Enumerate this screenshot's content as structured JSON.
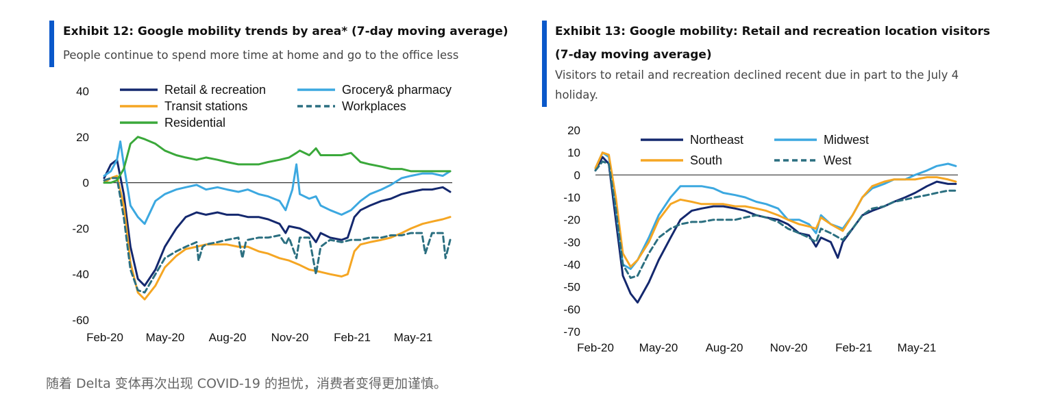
{
  "caption": "随着 Delta 变体再次出现 COVID-19 的担忧，消费者变得更加谨慎。",
  "colors": {
    "accent": "#0a58ca",
    "Retail & recreation": "#14286e",
    "Grocery& pharmacy": "#3ca8e0",
    "Transit stations": "#f5a623",
    "Workplaces": "#2b6f80",
    "Residential": "#3aa83a",
    "Northeast": "#14286e",
    "Midwest": "#3ca8e0",
    "South": "#f5a623",
    "West": "#2b6f80"
  },
  "exhibit12": {
    "title": "Exhibit 12: Google mobility trends by area* (7-day moving average)",
    "subtitle": "People continue to spend more time at home and go to the office less"
  },
  "exhibit13": {
    "title_line1": "Exhibit 13: Google mobility: Retail and recreation location visitors",
    "title_line2": "(7-day moving average)",
    "subtitle_line1": "Visitors to retail and recreation declined recent due in part to the July 4",
    "subtitle_line2": "holiday."
  },
  "chart_data": [
    {
      "type": "line",
      "ylim": [
        -60,
        40
      ],
      "yticks": [
        "40",
        "20",
        "0",
        "-20",
        "-40",
        "-60"
      ],
      "xticks": [
        "Feb-20",
        "May-20",
        "Aug-20",
        "Nov-20",
        "Feb-21",
        "May-21"
      ],
      "legend": [
        "Retail & recreation",
        "Grocery& pharmacy",
        "Transit stations",
        "Workplaces",
        "Residential"
      ],
      "series": [
        {
          "name": "Retail & recreation",
          "style": "solid",
          "x": [
            "2020-02-15",
            "2020-02-25",
            "2020-03-05",
            "2020-03-15",
            "2020-03-25",
            "2020-04-05",
            "2020-04-15",
            "2020-05-01",
            "2020-05-15",
            "2020-06-01",
            "2020-06-15",
            "2020-07-01",
            "2020-07-15",
            "2020-08-01",
            "2020-08-15",
            "2020-09-01",
            "2020-09-15",
            "2020-10-01",
            "2020-10-15",
            "2020-11-01",
            "2020-11-10",
            "2020-11-15",
            "2020-12-01",
            "2020-12-15",
            "2020-12-25",
            "2021-01-01",
            "2021-01-15",
            "2021-02-01",
            "2021-02-10",
            "2021-02-20",
            "2021-03-01",
            "2021-03-15",
            "2021-04-01",
            "2021-04-15",
            "2021-05-01",
            "2021-05-15",
            "2021-06-01",
            "2021-06-15",
            "2021-07-01",
            "2021-07-12"
          ],
          "y": [
            2,
            8,
            10,
            -5,
            -28,
            -42,
            -45,
            -38,
            -28,
            -20,
            -15,
            -13,
            -14,
            -13,
            -14,
            -14,
            -15,
            -15,
            -16,
            -18,
            -22,
            -19,
            -20,
            -22,
            -26,
            -22,
            -24,
            -25,
            -24,
            -15,
            -12,
            -10,
            -8,
            -7,
            -5,
            -4,
            -3,
            -3,
            -2,
            -4
          ]
        },
        {
          "name": "Grocery& pharmacy",
          "style": "solid",
          "x": [
            "2020-02-15",
            "2020-02-25",
            "2020-03-05",
            "2020-03-10",
            "2020-03-15",
            "2020-03-25",
            "2020-04-05",
            "2020-04-15",
            "2020-05-01",
            "2020-05-15",
            "2020-06-01",
            "2020-06-15",
            "2020-07-01",
            "2020-07-15",
            "2020-08-01",
            "2020-08-15",
            "2020-09-01",
            "2020-09-15",
            "2020-10-01",
            "2020-10-15",
            "2020-11-01",
            "2020-11-10",
            "2020-11-20",
            "2020-11-26",
            "2020-12-01",
            "2020-12-15",
            "2020-12-25",
            "2021-01-01",
            "2021-01-15",
            "2021-02-01",
            "2021-02-15",
            "2021-03-01",
            "2021-03-15",
            "2021-04-01",
            "2021-04-15",
            "2021-05-01",
            "2021-05-15",
            "2021-06-01",
            "2021-06-15",
            "2021-07-01",
            "2021-07-12"
          ],
          "y": [
            3,
            5,
            10,
            18,
            8,
            -10,
            -15,
            -18,
            -8,
            -5,
            -3,
            -2,
            -1,
            -3,
            -2,
            -3,
            -4,
            -3,
            -5,
            -6,
            -8,
            -12,
            -3,
            8,
            -5,
            -7,
            -6,
            -10,
            -12,
            -14,
            -12,
            -8,
            -5,
            -3,
            -1,
            2,
            3,
            4,
            4,
            3,
            5
          ]
        },
        {
          "name": "Transit stations",
          "style": "solid",
          "x": [
            "2020-02-15",
            "2020-02-25",
            "2020-03-05",
            "2020-03-15",
            "2020-03-25",
            "2020-04-05",
            "2020-04-15",
            "2020-05-01",
            "2020-05-15",
            "2020-06-01",
            "2020-06-15",
            "2020-07-01",
            "2020-07-15",
            "2020-08-01",
            "2020-08-15",
            "2020-09-01",
            "2020-09-15",
            "2020-10-01",
            "2020-10-15",
            "2020-11-01",
            "2020-11-15",
            "2020-12-01",
            "2020-12-15",
            "2021-01-01",
            "2021-01-15",
            "2021-02-01",
            "2021-02-10",
            "2021-02-20",
            "2021-03-01",
            "2021-03-15",
            "2021-04-01",
            "2021-04-15",
            "2021-05-01",
            "2021-05-15",
            "2021-06-01",
            "2021-06-15",
            "2021-07-01",
            "2021-07-12"
          ],
          "y": [
            0,
            2,
            3,
            -10,
            -35,
            -48,
            -51,
            -45,
            -37,
            -32,
            -29,
            -28,
            -27,
            -27,
            -27,
            -28,
            -28,
            -30,
            -31,
            -33,
            -34,
            -36,
            -38,
            -39,
            -40,
            -41,
            -40,
            -30,
            -27,
            -26,
            -25,
            -24,
            -22,
            -20,
            -18,
            -17,
            -16,
            -15
          ]
        },
        {
          "name": "Workplaces",
          "style": "dashed",
          "x": [
            "2020-02-15",
            "2020-02-25",
            "2020-03-05",
            "2020-03-15",
            "2020-03-25",
            "2020-04-05",
            "2020-04-15",
            "2020-05-01",
            "2020-05-15",
            "2020-06-01",
            "2020-06-15",
            "2020-07-01",
            "2020-07-04",
            "2020-07-10",
            "2020-07-15",
            "2020-08-01",
            "2020-08-15",
            "2020-09-01",
            "2020-09-07",
            "2020-09-12",
            "2020-09-15",
            "2020-10-01",
            "2020-10-15",
            "2020-11-01",
            "2020-11-10",
            "2020-11-15",
            "2020-11-26",
            "2020-12-01",
            "2020-12-15",
            "2020-12-25",
            "2021-01-01",
            "2021-01-10",
            "2021-01-15",
            "2021-02-01",
            "2021-02-15",
            "2021-03-01",
            "2021-03-15",
            "2021-04-01",
            "2021-04-15",
            "2021-05-01",
            "2021-05-15",
            "2021-05-31",
            "2021-06-05",
            "2021-06-15",
            "2021-07-01",
            "2021-07-05",
            "2021-07-12"
          ],
          "y": [
            1,
            2,
            2,
            -15,
            -38,
            -47,
            -48,
            -40,
            -33,
            -30,
            -28,
            -26,
            -34,
            -28,
            -27,
            -26,
            -25,
            -24,
            -33,
            -26,
            -25,
            -24,
            -24,
            -23,
            -27,
            -24,
            -33,
            -24,
            -24,
            -40,
            -28,
            -26,
            -25,
            -26,
            -25,
            -25,
            -24,
            -24,
            -23,
            -23,
            -22,
            -22,
            -31,
            -22,
            -22,
            -33,
            -25
          ]
        },
        {
          "name": "Residential",
          "style": "solid",
          "x": [
            "2020-02-15",
            "2020-02-25",
            "2020-03-05",
            "2020-03-15",
            "2020-03-25",
            "2020-04-05",
            "2020-04-15",
            "2020-05-01",
            "2020-05-15",
            "2020-06-01",
            "2020-06-15",
            "2020-07-01",
            "2020-07-15",
            "2020-08-01",
            "2020-08-15",
            "2020-09-01",
            "2020-09-15",
            "2020-10-01",
            "2020-10-15",
            "2020-11-01",
            "2020-11-15",
            "2020-11-26",
            "2020-12-01",
            "2020-12-15",
            "2020-12-25",
            "2021-01-01",
            "2021-01-15",
            "2021-02-01",
            "2021-02-15",
            "2021-03-01",
            "2021-03-15",
            "2021-04-01",
            "2021-04-15",
            "2021-05-01",
            "2021-05-15",
            "2021-06-01",
            "2021-06-15",
            "2021-07-01",
            "2021-07-12"
          ],
          "y": [
            0,
            0,
            1,
            6,
            17,
            20,
            19,
            17,
            14,
            12,
            11,
            10,
            11,
            10,
            9,
            8,
            8,
            8,
            9,
            10,
            11,
            13,
            14,
            12,
            15,
            12,
            12,
            12,
            13,
            9,
            8,
            7,
            6,
            6,
            5,
            5,
            5,
            5,
            5
          ]
        }
      ]
    },
    {
      "type": "line",
      "ylim": [
        -70,
        20
      ],
      "yticks": [
        "20",
        "10",
        "0",
        "-10",
        "-20",
        "-30",
        "-40",
        "-50",
        "-60",
        "-70"
      ],
      "xticks": [
        "Feb-20",
        "May-20",
        "Aug-20",
        "Nov-20",
        "Feb-21",
        "May-21"
      ],
      "legend": [
        "Northeast",
        "Midwest",
        "South",
        "West"
      ],
      "series": [
        {
          "name": "Northeast",
          "style": "solid",
          "x": [
            "2020-02-15",
            "2020-02-25",
            "2020-03-05",
            "2020-03-15",
            "2020-03-25",
            "2020-04-05",
            "2020-04-15",
            "2020-05-01",
            "2020-05-15",
            "2020-06-01",
            "2020-06-15",
            "2020-07-01",
            "2020-07-15",
            "2020-08-01",
            "2020-08-15",
            "2020-09-01",
            "2020-09-15",
            "2020-10-01",
            "2020-10-15",
            "2020-11-01",
            "2020-11-15",
            "2020-12-01",
            "2020-12-15",
            "2020-12-25",
            "2021-01-01",
            "2021-01-15",
            "2021-01-25",
            "2021-02-01",
            "2021-02-15",
            "2021-03-01",
            "2021-03-15",
            "2021-04-01",
            "2021-04-15",
            "2021-05-01",
            "2021-05-15",
            "2021-06-01",
            "2021-06-15",
            "2021-07-01",
            "2021-07-12"
          ],
          "y": [
            2,
            8,
            5,
            -20,
            -45,
            -53,
            -57,
            -48,
            -38,
            -28,
            -20,
            -16,
            -15,
            -14,
            -14,
            -15,
            -16,
            -18,
            -19,
            -20,
            -22,
            -26,
            -27,
            -32,
            -28,
            -30,
            -37,
            -30,
            -24,
            -18,
            -16,
            -14,
            -12,
            -10,
            -8,
            -5,
            -3,
            -4,
            -4
          ]
        },
        {
          "name": "Midwest",
          "style": "solid",
          "x": [
            "2020-02-15",
            "2020-02-25",
            "2020-03-05",
            "2020-03-15",
            "2020-03-25",
            "2020-04-05",
            "2020-04-15",
            "2020-05-01",
            "2020-05-15",
            "2020-06-01",
            "2020-06-15",
            "2020-07-01",
            "2020-07-15",
            "2020-08-01",
            "2020-08-15",
            "2020-09-01",
            "2020-09-15",
            "2020-10-01",
            "2020-10-15",
            "2020-11-01",
            "2020-11-15",
            "2020-12-01",
            "2020-12-15",
            "2020-12-25",
            "2021-01-01",
            "2021-01-15",
            "2021-02-01",
            "2021-02-15",
            "2021-03-01",
            "2021-03-15",
            "2021-04-01",
            "2021-04-15",
            "2021-05-01",
            "2021-05-15",
            "2021-06-01",
            "2021-06-15",
            "2021-07-01",
            "2021-07-12"
          ],
          "y": [
            3,
            10,
            8,
            -15,
            -40,
            -42,
            -38,
            -28,
            -18,
            -10,
            -5,
            -5,
            -5,
            -6,
            -8,
            -9,
            -10,
            -12,
            -13,
            -15,
            -20,
            -20,
            -22,
            -26,
            -18,
            -22,
            -24,
            -18,
            -10,
            -6,
            -4,
            -2,
            -2,
            0,
            2,
            4,
            5,
            4
          ]
        },
        {
          "name": "South",
          "style": "solid",
          "x": [
            "2020-02-15",
            "2020-02-25",
            "2020-03-05",
            "2020-03-15",
            "2020-03-25",
            "2020-04-05",
            "2020-04-15",
            "2020-05-01",
            "2020-05-15",
            "2020-06-01",
            "2020-06-15",
            "2020-07-01",
            "2020-07-15",
            "2020-08-01",
            "2020-08-15",
            "2020-09-01",
            "2020-09-15",
            "2020-10-01",
            "2020-10-15",
            "2020-11-01",
            "2020-11-15",
            "2020-12-01",
            "2020-12-15",
            "2020-12-25",
            "2021-01-01",
            "2021-01-15",
            "2021-02-01",
            "2021-02-15",
            "2021-03-01",
            "2021-03-15",
            "2021-04-01",
            "2021-04-15",
            "2021-05-01",
            "2021-05-15",
            "2021-06-01",
            "2021-06-15",
            "2021-07-01",
            "2021-07-12"
          ],
          "y": [
            3,
            10,
            9,
            -10,
            -35,
            -41,
            -38,
            -30,
            -20,
            -13,
            -11,
            -12,
            -13,
            -13,
            -13,
            -14,
            -14,
            -15,
            -16,
            -18,
            -20,
            -22,
            -23,
            -24,
            -19,
            -22,
            -25,
            -18,
            -10,
            -5,
            -3,
            -2,
            -2,
            -2,
            -1,
            -1,
            -2,
            -3
          ]
        },
        {
          "name": "West",
          "style": "dashed",
          "x": [
            "2020-02-15",
            "2020-02-25",
            "2020-03-05",
            "2020-03-15",
            "2020-03-25",
            "2020-04-05",
            "2020-04-15",
            "2020-05-01",
            "2020-05-15",
            "2020-06-01",
            "2020-06-15",
            "2020-07-01",
            "2020-07-15",
            "2020-08-01",
            "2020-08-15",
            "2020-09-01",
            "2020-09-15",
            "2020-10-01",
            "2020-10-15",
            "2020-11-01",
            "2020-11-15",
            "2020-12-01",
            "2020-12-15",
            "2020-12-25",
            "2021-01-01",
            "2021-01-15",
            "2021-02-01",
            "2021-02-15",
            "2021-03-01",
            "2021-03-15",
            "2021-04-01",
            "2021-04-15",
            "2021-05-01",
            "2021-05-15",
            "2021-06-01",
            "2021-06-15",
            "2021-07-01",
            "2021-07-12"
          ],
          "y": [
            2,
            6,
            5,
            -15,
            -40,
            -46,
            -45,
            -35,
            -28,
            -24,
            -22,
            -21,
            -21,
            -20,
            -20,
            -20,
            -19,
            -18,
            -19,
            -21,
            -24,
            -26,
            -28,
            -30,
            -24,
            -26,
            -29,
            -24,
            -18,
            -15,
            -14,
            -12,
            -11,
            -10,
            -9,
            -8,
            -7,
            -7
          ]
        }
      ]
    }
  ]
}
